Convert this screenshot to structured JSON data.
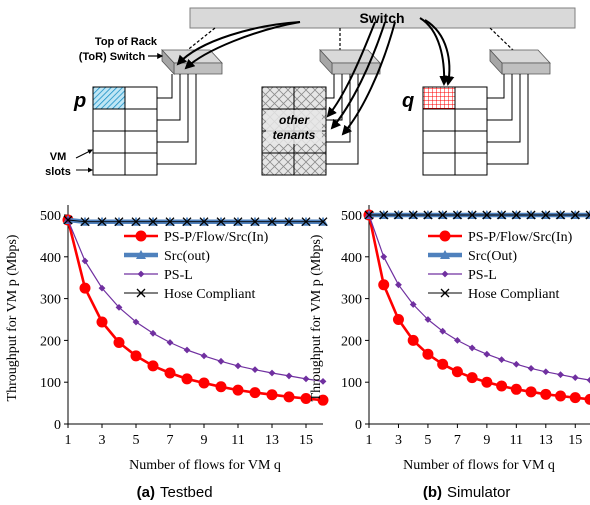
{
  "diagram": {
    "switch_label": "Switch",
    "tor_label_line1": "Top of Rack",
    "tor_label_line2": "(ToR) Switch",
    "vm_p_label": "p",
    "vm_q_label": "q",
    "other_tenants_line1": "other",
    "other_tenants_line2": "tenants",
    "vm_slots_line1": "VM",
    "vm_slots_line2": "slots"
  },
  "captions": {
    "a_tag": "(a)",
    "a_text": "Testbed",
    "b_tag": "(b)",
    "b_text": "Simulator"
  },
  "colors": {
    "red": "#ff0000",
    "purple": "#7030a0",
    "blue": "#4f81bd",
    "black": "#000000"
  },
  "chart_data": [
    {
      "type": "line",
      "title": "",
      "xlabel": "Number of flows for VM q",
      "ylabel": "Throughput for VM p (Mbps)",
      "xlim": [
        1,
        16
      ],
      "ylim": [
        0,
        500
      ],
      "xticks": [
        "1",
        "3",
        "5",
        "7",
        "9",
        "11",
        "13",
        "15"
      ],
      "yticks": [
        "0",
        "100",
        "200",
        "300",
        "400",
        "500"
      ],
      "legend_position": "top-right",
      "x": [
        1,
        2,
        3,
        4,
        5,
        6,
        7,
        8,
        9,
        10,
        11,
        12,
        13,
        14,
        15,
        16
      ],
      "series": [
        {
          "name": "PS-P/Flow/Src(In)",
          "values": [
            488,
            325,
            244,
            195,
            163,
            139,
            122,
            108,
            98,
            89,
            81,
            75,
            70,
            65,
            61,
            57
          ]
        },
        {
          "name": "Src(out)",
          "values": [
            488,
            484,
            484,
            484,
            484,
            484,
            484,
            484,
            484,
            484,
            484,
            484,
            484,
            484,
            484,
            484
          ]
        },
        {
          "name": "PS-L",
          "values": [
            488,
            390,
            325,
            279,
            244,
            217,
            195,
            177,
            163,
            150,
            139,
            130,
            122,
            115,
            108,
            102
          ]
        },
        {
          "name": "Hose Compliant",
          "values": [
            488,
            484,
            484,
            484,
            484,
            484,
            484,
            484,
            484,
            484,
            484,
            484,
            484,
            484,
            484,
            484
          ]
        }
      ]
    },
    {
      "type": "line",
      "title": "",
      "xlabel": "Number of flows for VM q",
      "ylabel": "Throughput for VM p (Mbps)",
      "xlim": [
        1,
        16
      ],
      "ylim": [
        0,
        500
      ],
      "xticks": [
        "1",
        "3",
        "5",
        "7",
        "9",
        "11",
        "13",
        "15"
      ],
      "yticks": [
        "0",
        "100",
        "200",
        "300",
        "400",
        "500"
      ],
      "legend_position": "top-right",
      "x": [
        1,
        2,
        3,
        4,
        5,
        6,
        7,
        8,
        9,
        10,
        11,
        12,
        13,
        14,
        15,
        16
      ],
      "series": [
        {
          "name": "PS-P/Flow/Src(In)",
          "values": [
            500,
            333,
            250,
            200,
            167,
            143,
            125,
            111,
            100,
            91,
            83,
            77,
            71,
            67,
            63,
            59
          ]
        },
        {
          "name": "Src(Out)",
          "values": [
            500,
            500,
            500,
            500,
            500,
            500,
            500,
            500,
            500,
            500,
            500,
            500,
            500,
            500,
            500,
            500
          ]
        },
        {
          "name": "PS-L",
          "values": [
            500,
            400,
            333,
            286,
            250,
            222,
            200,
            182,
            167,
            154,
            143,
            133,
            125,
            118,
            111,
            105
          ]
        },
        {
          "name": "Hose Compliant",
          "values": [
            500,
            500,
            500,
            500,
            500,
            500,
            500,
            500,
            500,
            500,
            500,
            500,
            500,
            500,
            500,
            500
          ]
        }
      ]
    }
  ]
}
